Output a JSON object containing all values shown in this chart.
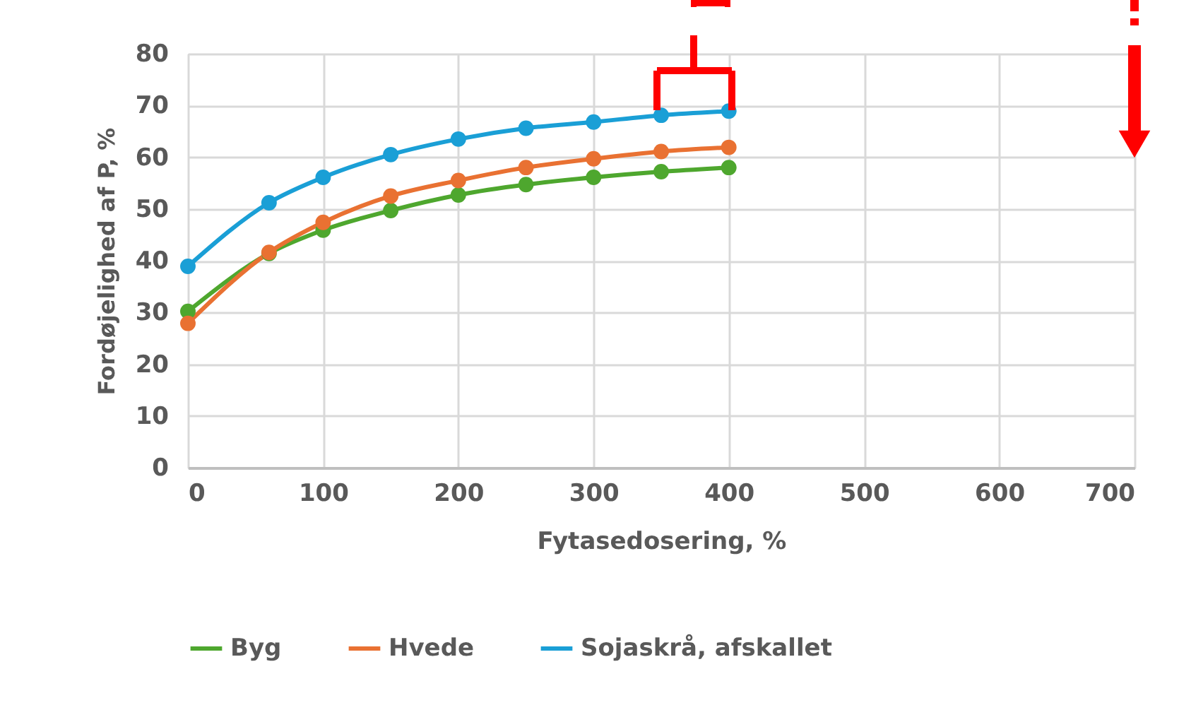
{
  "chart_data": {
    "type": "line",
    "xlabel": "Fytasedosering, %",
    "ylabel": "Fordøjelighed af P, %",
    "x": [
      0,
      60,
      100,
      150,
      200,
      250,
      300,
      350,
      400
    ],
    "series": [
      {
        "name": "Byg",
        "color": "#4ea72e",
        "values": [
          30.2,
          41.4,
          45.9,
          49.7,
          52.7,
          54.7,
          56.1,
          57.2,
          58.0
        ]
      },
      {
        "name": "Hvede",
        "color": "#e97132",
        "values": [
          27.9,
          41.6,
          47.4,
          52.5,
          55.5,
          58.0,
          59.7,
          61.1,
          61.9
        ]
      },
      {
        "name": "Sojaskrå, afskallet",
        "color": "#1a9fd6",
        "values": [
          38.9,
          51.2,
          56.1,
          60.5,
          63.5,
          65.6,
          66.8,
          68.1,
          68.9
        ]
      }
    ],
    "xlim": [
      0,
      700
    ],
    "xticks": [
      0,
      100,
      200,
      300,
      400,
      500,
      600,
      700
    ],
    "ylim": [
      0,
      80
    ],
    "yticks": [
      0,
      10,
      20,
      30,
      40,
      50,
      60,
      70,
      80
    ],
    "grid": true,
    "legend": "bottom",
    "marker": "circle",
    "line_style": "solid"
  }
}
